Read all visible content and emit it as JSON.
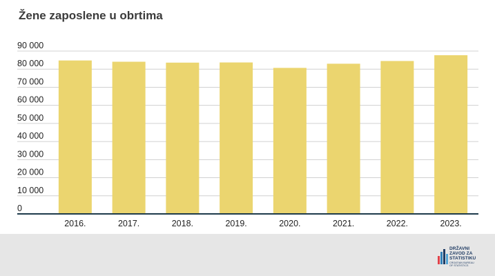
{
  "chart_data": {
    "type": "bar",
    "title": "Žene zaposlene u obrtima",
    "categories": [
      "2016.",
      "2017.",
      "2018.",
      "2019.",
      "2020.",
      "2021.",
      "2022.",
      "2023."
    ],
    "values": [
      84800,
      84100,
      83600,
      83700,
      80700,
      83000,
      84500,
      87700
    ],
    "ylim": [
      0,
      90000
    ],
    "yticks": [
      0,
      10000,
      20000,
      30000,
      40000,
      50000,
      60000,
      70000,
      80000,
      90000
    ],
    "ytick_labels": [
      "0",
      "10 000",
      "20 000",
      "30 000",
      "40 000",
      "50 000",
      "60 000",
      "70 000",
      "80 000",
      "90 000"
    ],
    "grid": true,
    "xlabel": "",
    "ylabel": "",
    "bar_color": "#ebd56f",
    "grid_color": "#d0d0d0",
    "axis_color": "#1d3a4a"
  },
  "footer": {
    "logo": {
      "line1": "DRŽAVNI",
      "line2": "ZAVOD ZA",
      "line3": "STATISTIKU",
      "line4": "CROATIAN BUREAU",
      "line5": "OF STATISTICS"
    }
  }
}
